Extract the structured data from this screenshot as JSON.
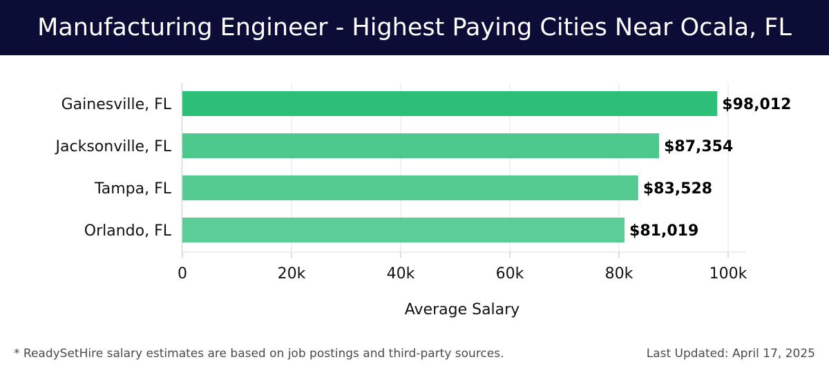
{
  "header": {
    "title": "Manufacturing Engineer - Highest Paying Cities Near Ocala, FL"
  },
  "chart_data": {
    "type": "bar",
    "orientation": "horizontal",
    "categories": [
      "Gainesville, FL",
      "Jacksonville, FL",
      "Tampa, FL",
      "Orlando, FL"
    ],
    "values": [
      98012,
      87354,
      83528,
      81019
    ],
    "value_labels": [
      "$98,012",
      "$87,354",
      "$83,528",
      "$81,019"
    ],
    "xlabel": "Average Salary",
    "ylabel": "",
    "xlim": [
      0,
      100000
    ],
    "x_ticks": [
      0,
      20000,
      40000,
      60000,
      80000,
      100000
    ],
    "x_tick_labels": [
      "0",
      "20k",
      "40k",
      "60k",
      "80k",
      "100k"
    ],
    "grid": true,
    "colors": {
      "top_bar": "#2bbf78",
      "other_bars": "#4ec98e",
      "grid": "#e3e3e3",
      "header_bg": "#0b0d36"
    }
  },
  "footer": {
    "note": "* ReadySetHire salary estimates are based on job postings and third-party sources.",
    "last_updated": "Last Updated: April 17, 2025"
  }
}
